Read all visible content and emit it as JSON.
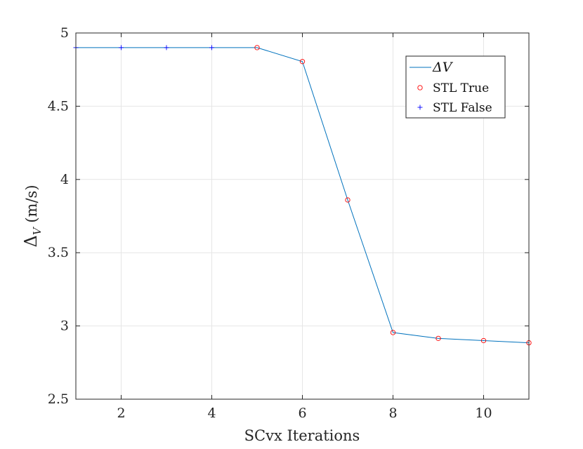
{
  "chart_data": {
    "type": "line",
    "xlabel": "SCvx Iterations",
    "ylabel": {
      "base": "Δ",
      "subscript": "V",
      "units": " (m/s)"
    },
    "xlim": [
      1,
      11
    ],
    "ylim": [
      2.5,
      5
    ],
    "xticks": [
      2,
      4,
      6,
      8,
      10
    ],
    "yticks": [
      2.5,
      3,
      3.5,
      4,
      4.5,
      5
    ],
    "ytick_labels": [
      "2.5",
      "3",
      "3.5",
      "4",
      "4.5",
      "5"
    ],
    "grid": true,
    "legend_position": "top-right",
    "series": [
      {
        "name": "ΔV",
        "kind": "line",
        "color": "#0072BD",
        "x": [
          1,
          2,
          3,
          4,
          5,
          6,
          7,
          8,
          9,
          10,
          11
        ],
        "y": [
          4.9,
          4.9,
          4.9,
          4.9,
          4.9,
          4.805,
          3.86,
          2.955,
          2.915,
          2.9,
          2.885
        ]
      },
      {
        "name": "STL True",
        "kind": "marker-circle",
        "color": "#FF0000",
        "x": [
          5,
          6,
          7,
          8,
          9,
          10,
          11
        ],
        "y": [
          4.9,
          4.805,
          3.86,
          2.955,
          2.915,
          2.9,
          2.885
        ]
      },
      {
        "name": "STL False",
        "kind": "marker-plus",
        "color": "#0000FF",
        "x": [
          1,
          2,
          3,
          4
        ],
        "y": [
          4.9,
          4.9,
          4.9,
          4.9
        ]
      }
    ]
  }
}
